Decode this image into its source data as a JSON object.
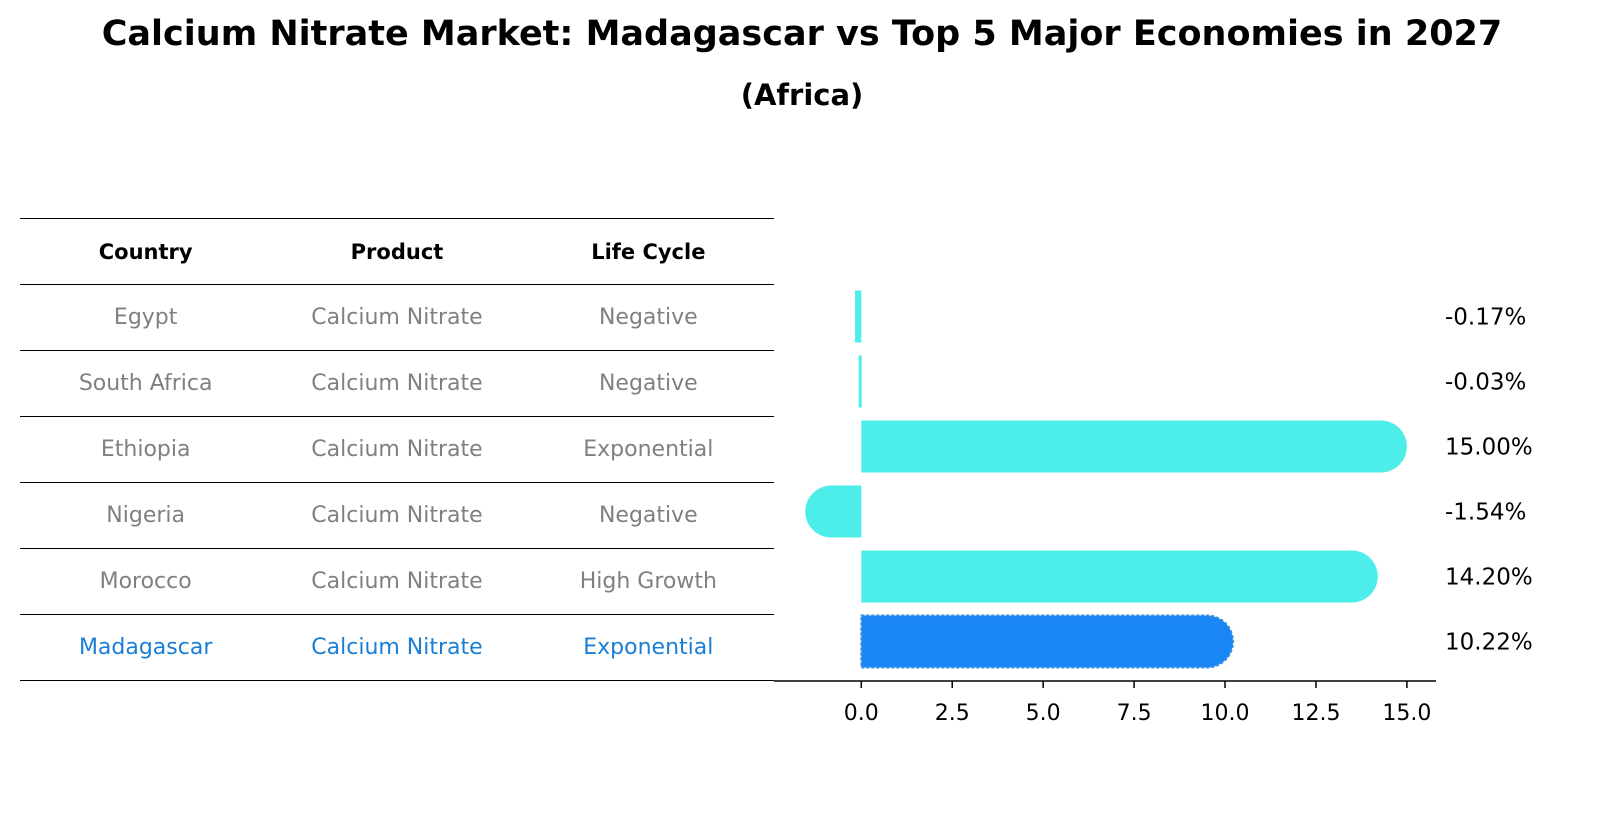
{
  "header": {
    "title": "Calcium Nitrate Market: Madagascar vs Top 5 Major Economies in 2027",
    "subtitle": "(Africa)"
  },
  "table": {
    "columns": [
      "Country",
      "Product",
      "Life Cycle"
    ],
    "rows": [
      {
        "country": "Egypt",
        "product": "Calcium Nitrate",
        "life_cycle": "Negative"
      },
      {
        "country": "South Africa",
        "product": "Calcium Nitrate",
        "life_cycle": "Negative"
      },
      {
        "country": "Ethiopia",
        "product": "Calcium Nitrate",
        "life_cycle": "Exponential"
      },
      {
        "country": "Nigeria",
        "product": "Calcium Nitrate",
        "life_cycle": "Negative"
      },
      {
        "country": "Morocco",
        "product": "Calcium Nitrate",
        "life_cycle": "High Growth"
      },
      {
        "country": "Madagascar",
        "product": "Calcium Nitrate",
        "life_cycle": "Exponential"
      }
    ]
  },
  "colors": {
    "bar": "#4deeea",
    "highlight": "#1a85f5",
    "highlight_text": "#1a7fd4",
    "muted_text": "#808080"
  },
  "chart_data": {
    "type": "bar",
    "orientation": "horizontal",
    "title": "Calcium Nitrate Market: Madagascar vs Top 5 Major Economies in 2027",
    "subtitle": "(Africa)",
    "categories": [
      "Egypt",
      "South Africa",
      "Ethiopia",
      "Nigeria",
      "Morocco",
      "Madagascar"
    ],
    "values": [
      -0.17,
      -0.03,
      15.0,
      -1.54,
      14.2,
      10.22
    ],
    "value_labels": [
      "-0.17%",
      "-0.03%",
      "15.00%",
      "-1.54%",
      "14.20%",
      "10.22%"
    ],
    "highlight": "Madagascar",
    "xlim": [
      -2.4,
      15.8
    ],
    "xticks": [
      0.0,
      2.5,
      5.0,
      7.5,
      10.0,
      12.5,
      15.0
    ],
    "xtick_labels": [
      "0.0",
      "2.5",
      "5.0",
      "7.5",
      "10.0",
      "12.5",
      "15.0"
    ],
    "xlabel": "",
    "ylabel": "",
    "grid": false
  }
}
